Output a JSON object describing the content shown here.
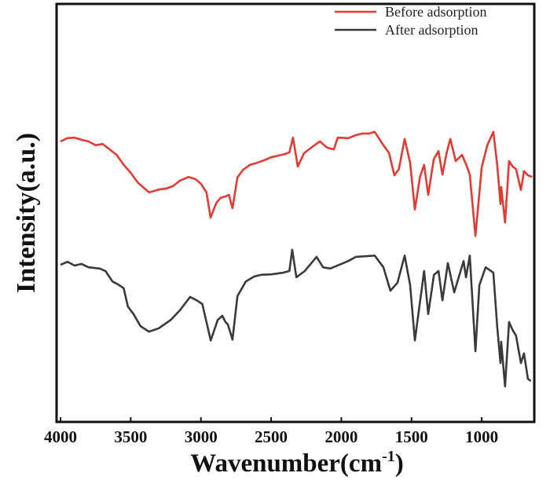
{
  "chart_data": {
    "type": "line",
    "title": "",
    "xlabel": "Wavenumber(cm",
    "xlabel_sup": "-1",
    "xlabel_end": ")",
    "ylabel": "Intensity(a.u.)",
    "xlim": [
      4000,
      615
    ],
    "x_reversed": true,
    "ylim": [
      0,
      100
    ],
    "y_ticks_shown": false,
    "grid": false,
    "legend_position": "top-right",
    "x_ticks": [
      "4000",
      "3500",
      "3000",
      "2500",
      "2000",
      "1500",
      "1000"
    ],
    "series": [
      {
        "name": "Before adsorption",
        "color": "#e03c36",
        "x": [
          4000,
          3950,
          3900,
          3850,
          3800,
          3750,
          3700,
          3650,
          3600,
          3550,
          3500,
          3450,
          3400,
          3368,
          3300,
          3250,
          3200,
          3150,
          3088,
          3040,
          3000,
          2960,
          2931,
          2890,
          2860,
          2830,
          2800,
          2775,
          2740,
          2700,
          2650,
          2600,
          2550,
          2500,
          2450,
          2400,
          2370,
          2344,
          2310,
          2265,
          2200,
          2153,
          2100,
          2053,
          2025,
          1950,
          1896,
          1850,
          1800,
          1762,
          1706,
          1660,
          1622,
          1590,
          1549,
          1510,
          1476,
          1440,
          1410,
          1381,
          1342,
          1308,
          1280,
          1250,
          1224,
          1185,
          1140,
          1110,
          1085,
          1045,
          1000,
          960,
          917,
          890,
          866,
          861,
          834,
          805,
          780,
          756,
          721,
          699,
          671,
          640
        ],
        "y": [
          67.1,
          67.9,
          68.0,
          67.5,
          67.1,
          66.2,
          66.5,
          65.2,
          63.9,
          61.5,
          59.6,
          57.3,
          55.8,
          54.9,
          55.6,
          55.8,
          56.4,
          57.7,
          58.6,
          58.1,
          57.0,
          54.9,
          48.9,
          52.4,
          53.6,
          53.9,
          54.3,
          51.1,
          58.5,
          60.3,
          61.5,
          62.0,
          62.6,
          63.3,
          63.7,
          64.1,
          64.5,
          68.0,
          61.1,
          64.3,
          66.0,
          67.1,
          65.6,
          65.2,
          68.0,
          67.9,
          68.6,
          69.0,
          69.0,
          69.4,
          66.5,
          64.3,
          59.0,
          60.5,
          67.7,
          62.0,
          50.8,
          58.6,
          61.5,
          54.3,
          62.8,
          64.8,
          59.2,
          64.3,
          67.7,
          62.4,
          63.9,
          61.5,
          59.2,
          44.5,
          60.9,
          66.2,
          69.4,
          61.5,
          52.1,
          56.2,
          47.7,
          62.4,
          61.1,
          60.5,
          55.5,
          60.0,
          59.0,
          58.6
        ]
      },
      {
        "name": "After adsorption",
        "color": "#3a3a3a",
        "x": [
          4000,
          3950,
          3900,
          3850,
          3800,
          3720,
          3680,
          3630,
          3590,
          3550,
          3520,
          3480,
          3430,
          3370,
          3300,
          3215,
          3150,
          3077,
          3030,
          2990,
          2930,
          2880,
          2847,
          2825,
          2808,
          2775,
          2740,
          2680,
          2620,
          2570,
          2500,
          2416,
          2370,
          2350,
          2320,
          2260,
          2176,
          2130,
          2080,
          2000,
          1950,
          1896,
          1762,
          1700,
          1650,
          1600,
          1549,
          1510,
          1476,
          1410,
          1381,
          1340,
          1308,
          1280,
          1241,
          1196,
          1129,
          1112,
          1085,
          1045,
          1017,
          972,
          917,
          889,
          866,
          861,
          834,
          805,
          780,
          756,
          721,
          699,
          671,
          650
        ],
        "y": [
          37.6,
          38.3,
          37.4,
          37.8,
          37.0,
          36.7,
          36.1,
          33.6,
          32.9,
          32.0,
          27.6,
          25.8,
          22.9,
          21.6,
          22.4,
          24.4,
          26.7,
          29.9,
          29.1,
          28.2,
          19.5,
          24.4,
          25.4,
          23.9,
          23.3,
          19.7,
          30.1,
          33.6,
          34.8,
          35.2,
          35.3,
          35.7,
          36.1,
          41.2,
          34.6,
          36.1,
          39.5,
          37.0,
          36.7,
          37.8,
          38.5,
          39.5,
          39.8,
          37.0,
          31.4,
          33.3,
          39.8,
          32.7,
          19.5,
          36.1,
          25.8,
          35.2,
          36.1,
          29.1,
          38.0,
          31.0,
          38.5,
          34.6,
          39.8,
          16.9,
          32.7,
          37.0,
          35.7,
          22.6,
          14.1,
          19.2,
          8.5,
          23.9,
          22.0,
          20.7,
          14.1,
          16.4,
          10.3,
          9.8
        ]
      }
    ]
  }
}
